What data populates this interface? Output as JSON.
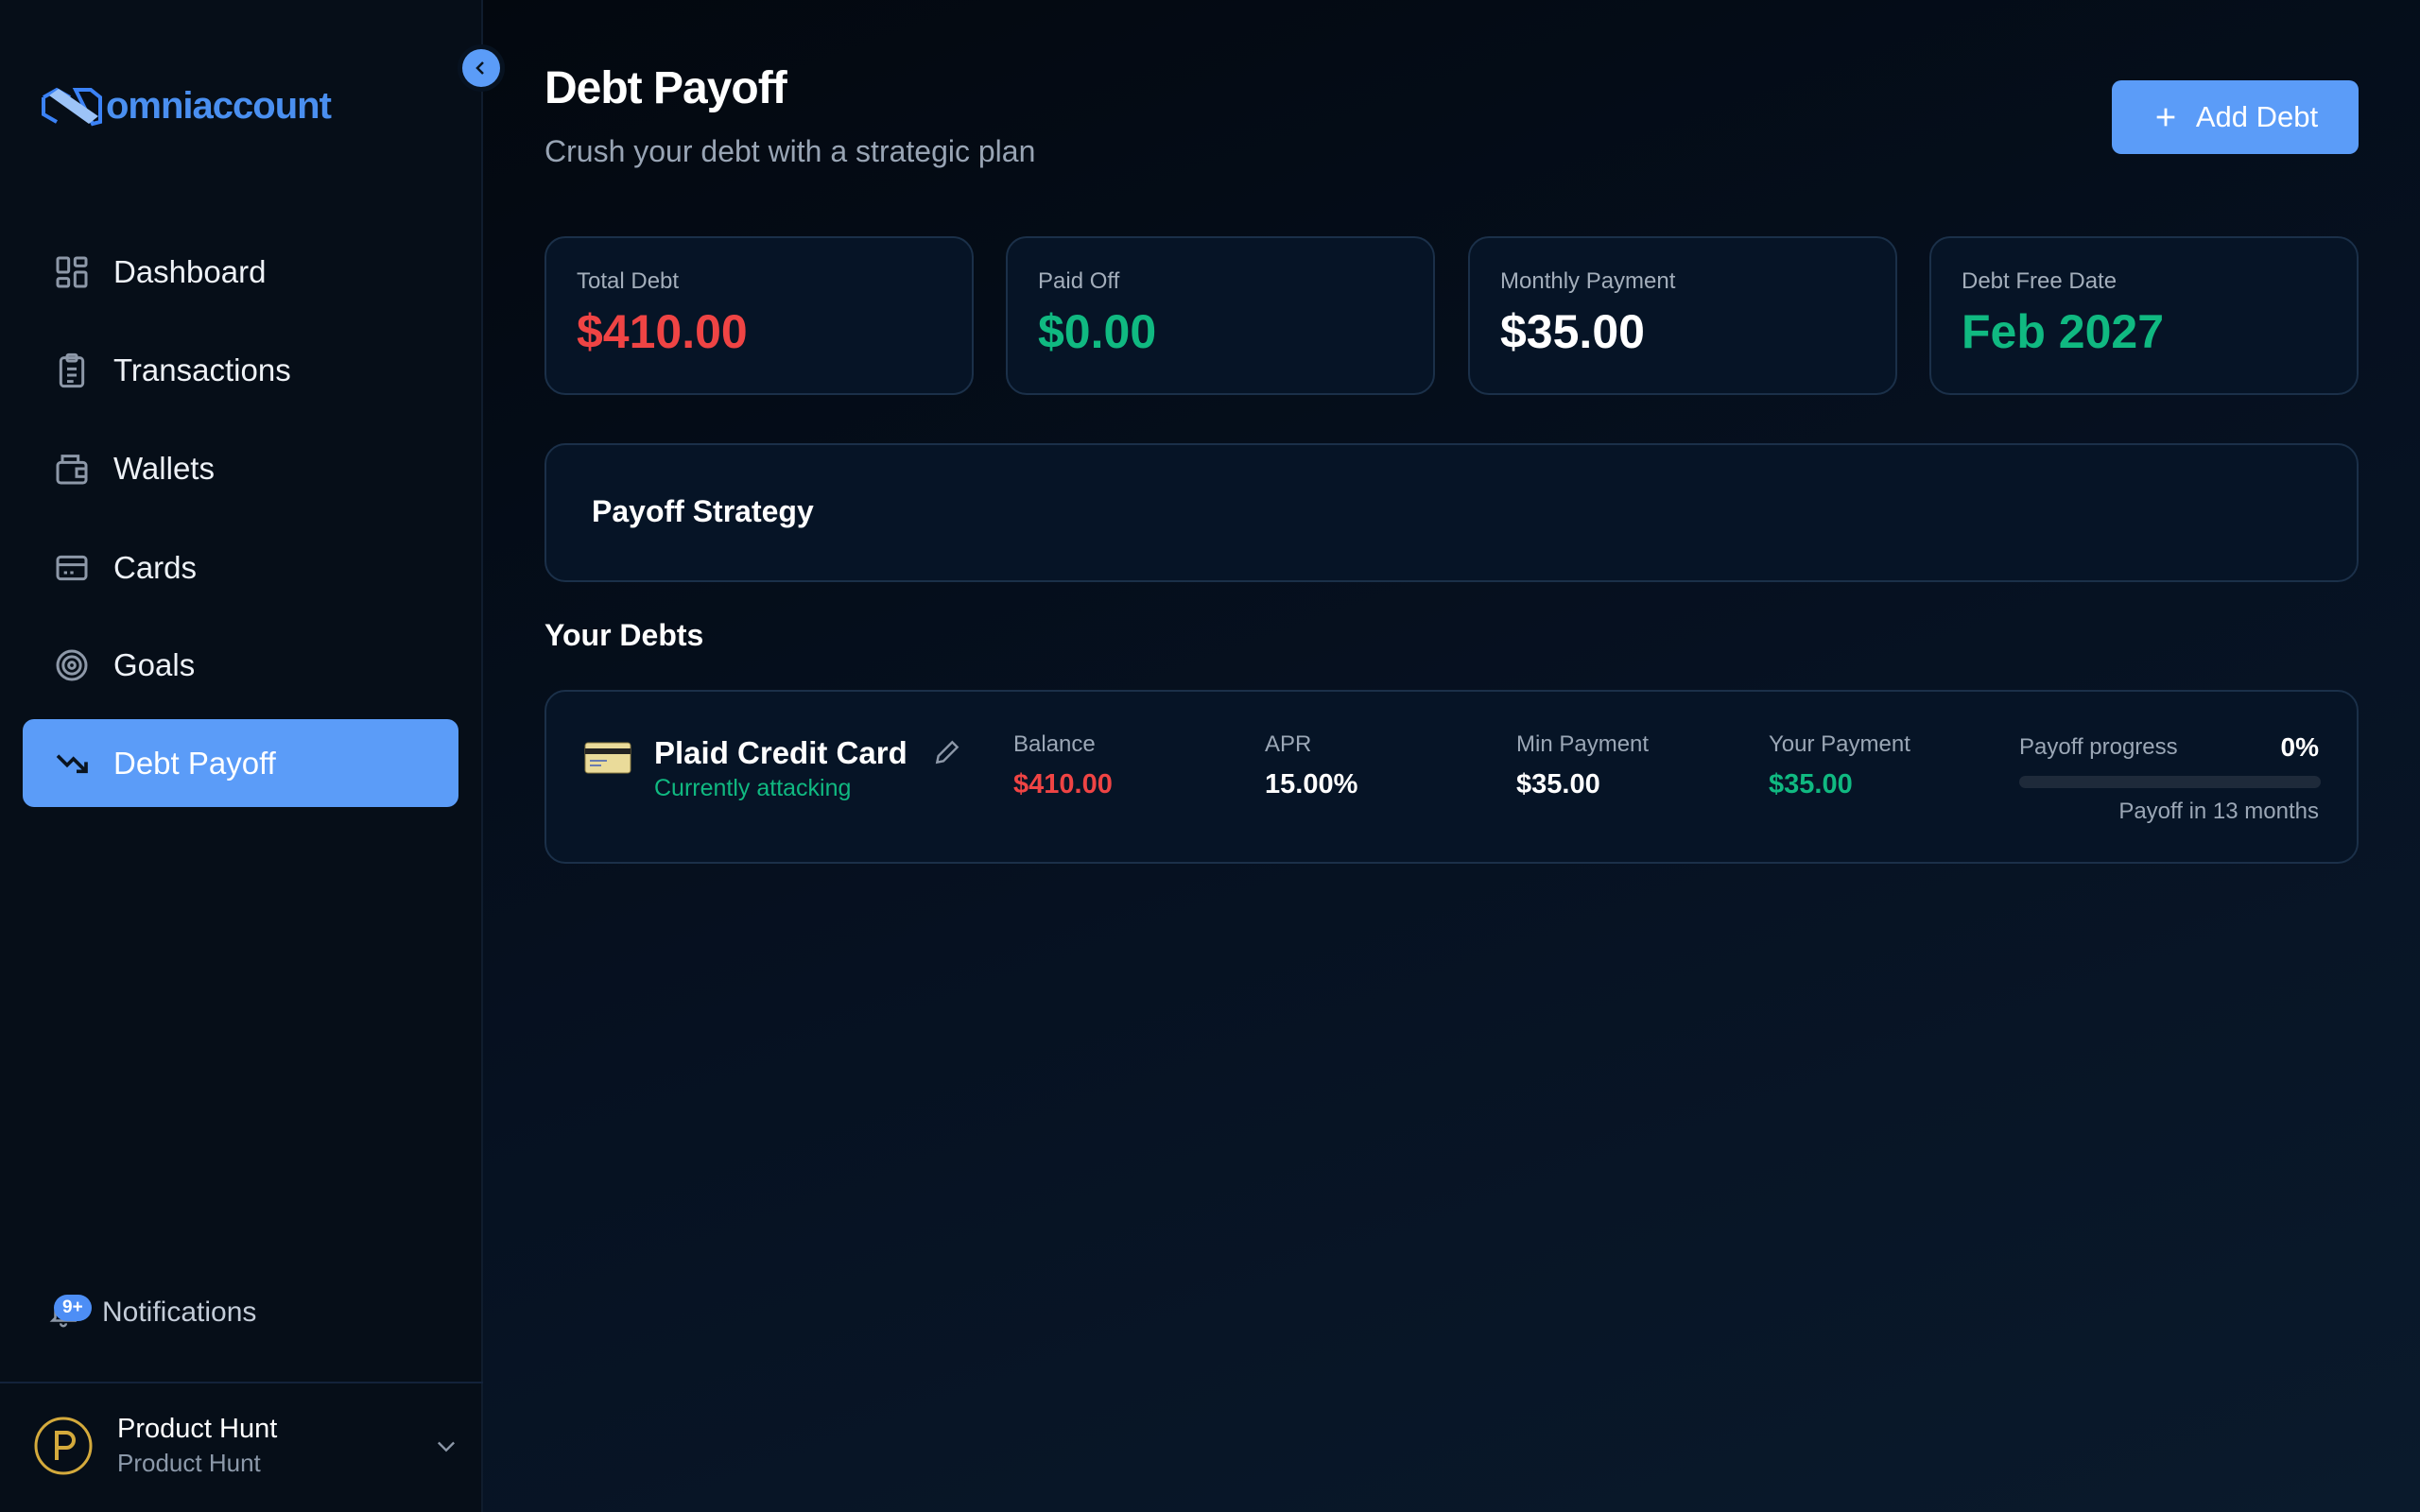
{
  "brand": {
    "name": "omniaccount",
    "primary": "#5b9cf8"
  },
  "sidebar": {
    "collapse_icon": "chevron-left-icon",
    "items": [
      {
        "label": "Dashboard",
        "icon": "grid-icon",
        "active": false
      },
      {
        "label": "Transactions",
        "icon": "clipboard-icon",
        "active": false
      },
      {
        "label": "Wallets",
        "icon": "wallet-icon",
        "active": false
      },
      {
        "label": "Cards",
        "icon": "credit-card-icon",
        "active": false
      },
      {
        "label": "Goals",
        "icon": "target-icon",
        "active": false
      },
      {
        "label": "Debt Payoff",
        "icon": "trending-down-icon",
        "active": true
      }
    ],
    "notifications": {
      "label": "Notifications",
      "badge": "9+"
    },
    "profile": {
      "name": "Product Hunt",
      "subtitle": "Product Hunt"
    }
  },
  "header": {
    "title": "Debt Payoff",
    "subtitle": "Crush your debt with a strategic plan",
    "add_button": "Add Debt"
  },
  "stats": [
    {
      "label": "Total Debt",
      "value": "$410.00",
      "color": "#ef4444"
    },
    {
      "label": "Paid Off",
      "value": "$0.00",
      "color": "#10b981"
    },
    {
      "label": "Monthly Payment",
      "value": "$35.00",
      "color": "#ffffff"
    },
    {
      "label": "Debt Free Date",
      "value": "Feb 2027",
      "color": "#10b981"
    }
  ],
  "strategy": {
    "title": "Payoff Strategy"
  },
  "debts_section": {
    "title": "Your Debts"
  },
  "debts": [
    {
      "name": "Plaid Credit Card",
      "status": "Currently attacking",
      "balance_label": "Balance",
      "balance": "$410.00",
      "apr_label": "APR",
      "apr": "15.00%",
      "min_label": "Min Payment",
      "min": "$35.00",
      "your_label": "Your Payment",
      "your": "$35.00",
      "progress_label": "Payoff progress",
      "progress_text": "0%",
      "progress": 0,
      "payoff_text": "Payoff in 13 months"
    }
  ]
}
